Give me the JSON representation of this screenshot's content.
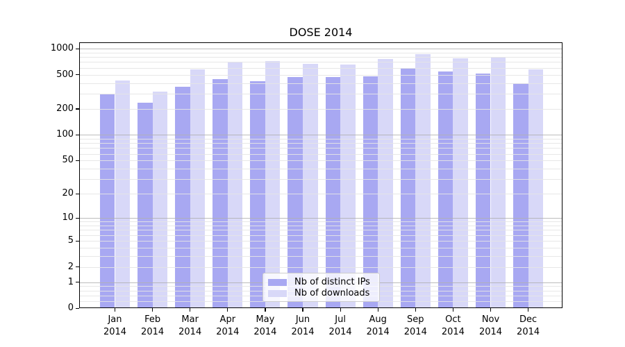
{
  "figure": {
    "background": "#ffffff",
    "frame_color": "#000000",
    "major_grid_color": "#b0b0b0",
    "minor_grid_color": "#e5e5e5"
  },
  "chart_data": {
    "type": "bar",
    "title": "DOSE 2014",
    "xlabel": "",
    "ylabel": "",
    "yscale": "log1p",
    "ylim": [
      0,
      1180
    ],
    "grid": "on",
    "legend_position": "bottom-center-inside",
    "categories": [
      "Jan",
      "Feb",
      "Mar",
      "Apr",
      "May",
      "Jun",
      "Jul",
      "Aug",
      "Sep",
      "Oct",
      "Nov",
      "Dec"
    ],
    "category_year": "2014",
    "series": [
      {
        "name": "Nb of distinct IPs",
        "color": "#a8a8f2",
        "values": [
          295,
          235,
          365,
          440,
          420,
          470,
          465,
          480,
          595,
          540,
          510,
          400
        ]
      },
      {
        "name": "Nb of downloads",
        "color": "#d8d8f8",
        "values": [
          430,
          320,
          575,
          705,
          715,
          665,
          655,
          755,
          860,
          775,
          790,
          570
        ]
      }
    ],
    "ytick_values": [
      0,
      1,
      2,
      5,
      10,
      20,
      50,
      100,
      200,
      500,
      1000
    ],
    "ytick_labels": [
      "0",
      "1",
      "2",
      "5",
      "10",
      "20",
      "50",
      "100",
      "200",
      "500",
      "1000"
    ],
    "major_gridline_values": [
      1,
      10,
      100,
      1000
    ],
    "minor_gridline_values": [
      0.2,
      0.4,
      0.6,
      0.8,
      2,
      3,
      4,
      5,
      6,
      7,
      8,
      9,
      20,
      30,
      40,
      50,
      60,
      70,
      80,
      90,
      200,
      300,
      400,
      500,
      600,
      700,
      800,
      900
    ]
  }
}
